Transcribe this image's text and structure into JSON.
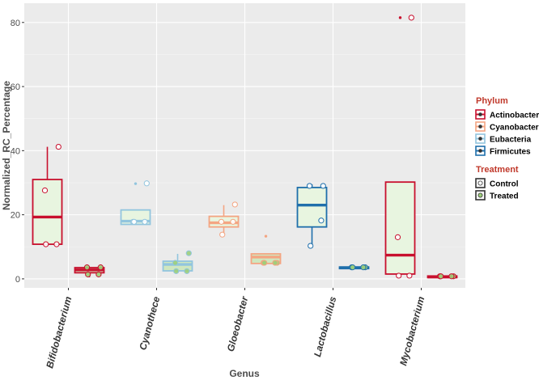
{
  "chart_data": {
    "type": "box",
    "title": "",
    "xlabel": "Genus",
    "ylabel": "Normalized_RC_Percentage",
    "ylim": [
      -2.8,
      86
    ],
    "yticks": [
      0,
      20,
      40,
      60,
      80
    ],
    "grid": true,
    "legend_position": "right",
    "categories": [
      "Bifidobacterium",
      "Cyanothece",
      "Gloeobacter",
      "Lactobacillus",
      "Mycobacterium"
    ],
    "phylum_legend": {
      "title": "Phylum",
      "entries": [
        {
          "name": "Actinobacteria",
          "color": "#c8102e"
        },
        {
          "name": "Cyanobacteria",
          "color": "#f4a582"
        },
        {
          "name": "Eubacteria",
          "color": "#92c5de"
        },
        {
          "name": "Firmicutes",
          "color": "#1f6fab"
        }
      ]
    },
    "treatment_legend": {
      "title": "Treatment",
      "entries": [
        {
          "name": "Control",
          "fill": "#ffffff"
        },
        {
          "name": "Treated",
          "fill": "#9dcf7a"
        }
      ]
    },
    "boxes": [
      {
        "category": "Bifidobacterium",
        "phylum": "Actinobacteria",
        "treatment": "Control",
        "min": 10.8,
        "q1": 10.8,
        "median": 19.3,
        "q3": 31,
        "max": 41.2,
        "outliers": [],
        "points": [
          41.2,
          27.6,
          10.8,
          10.8
        ]
      },
      {
        "category": "Bifidobacterium",
        "phylum": "Actinobacteria",
        "treatment": "Treated",
        "min": 0.5,
        "q1": 1.9,
        "median": 2.8,
        "q3": 3.5,
        "max": 3.6,
        "outliers": [],
        "points": [
          3.6,
          3.6,
          1.4,
          1.4
        ]
      },
      {
        "category": "Cyanothece",
        "phylum": "Eubacteria",
        "treatment": "Control",
        "min": 17,
        "q1": 17,
        "median": 18,
        "q3": 21.5,
        "max": 21.5,
        "outliers": [
          29.7
        ],
        "points": [
          29.8,
          17.8,
          17.8,
          17.8
        ]
      },
      {
        "category": "Cyanothece",
        "phylum": "Eubacteria",
        "treatment": "Treated",
        "min": 2.2,
        "q1": 2.5,
        "median": 4.5,
        "q3": 5.5,
        "max": 7.8,
        "outliers": [],
        "points": [
          8,
          5,
          2.4,
          2.4
        ]
      },
      {
        "category": "Gloeobacter",
        "phylum": "Cyanobacteria",
        "treatment": "Control",
        "min": 13.8,
        "q1": 16.2,
        "median": 17.5,
        "q3": 19.5,
        "max": 23,
        "outliers": [],
        "points": [
          23.2,
          17.8,
          17.8,
          13.8
        ]
      },
      {
        "category": "Gloeobacter",
        "phylum": "Cyanobacteria",
        "treatment": "Treated",
        "min": 4.8,
        "q1": 4.8,
        "median": 6.8,
        "q3": 7.8,
        "max": 7.8,
        "outliers": [
          13.3
        ],
        "points": [
          5,
          5,
          5,
          5
        ]
      },
      {
        "category": "Lactobacillus",
        "phylum": "Firmicutes",
        "treatment": "Control",
        "min": 10.5,
        "q1": 16.2,
        "median": 23,
        "q3": 28.5,
        "max": 29.5,
        "outliers": [],
        "points": [
          29,
          29,
          18.2,
          10.3
        ]
      },
      {
        "category": "Lactobacillus",
        "phylum": "Firmicutes",
        "treatment": "Treated",
        "min": 3.2,
        "q1": 3.2,
        "median": 3.5,
        "q3": 3.7,
        "max": 3.7,
        "outliers": [],
        "points": [
          3.6,
          3.6,
          3.6,
          3.6
        ]
      },
      {
        "category": "Mycobacterium",
        "phylum": "Actinobacteria",
        "treatment": "Control",
        "min": 1.2,
        "q1": 1.5,
        "median": 7.4,
        "q3": 30.2,
        "max": 30.2,
        "outliers": [
          81.5
        ],
        "points": [
          81.5,
          13,
          1,
          1
        ]
      },
      {
        "category": "Mycobacterium",
        "phylum": "Actinobacteria",
        "treatment": "Treated",
        "min": 0.4,
        "q1": 0.4,
        "median": 0.6,
        "q3": 0.9,
        "max": 0.9,
        "outliers": [],
        "points": [
          0.8,
          0.8,
          0.8,
          0.8
        ]
      }
    ]
  }
}
